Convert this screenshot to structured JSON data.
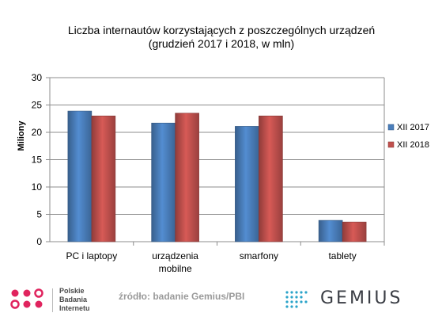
{
  "chart_data": {
    "type": "bar",
    "title_line1": "Liczba internautów korzystających z poszczególnych urządzeń",
    "title_line2": "(grudzień 2017 i 2018, w mln)",
    "ylabel": "Miliony",
    "ylim": [
      0,
      30
    ],
    "yticks": [
      0,
      5,
      10,
      15,
      20,
      25,
      30
    ],
    "categories": [
      "PC i laptopy",
      "urządzenia mobilne",
      "smarfony",
      "tablety"
    ],
    "category_lines": [
      [
        "PC i laptopy"
      ],
      [
        "urządzenia",
        "mobilne"
      ],
      [
        "smarfony"
      ],
      [
        "tablety"
      ]
    ],
    "series": [
      {
        "name": "XII 2017",
        "values": [
          23.9,
          21.7,
          21.1,
          3.9
        ],
        "color": "#4a7ebb"
      },
      {
        "name": "XII 2018",
        "values": [
          23.0,
          23.5,
          23.0,
          3.6
        ],
        "color": "#c0504d"
      }
    ],
    "grid": true,
    "legend_position": "right"
  },
  "footer": {
    "logo_lines": [
      "Polskie",
      "Badania",
      "Internetu"
    ],
    "source": "źródło: badanie Gemius/PBI",
    "gemius": "GEMIUS"
  }
}
